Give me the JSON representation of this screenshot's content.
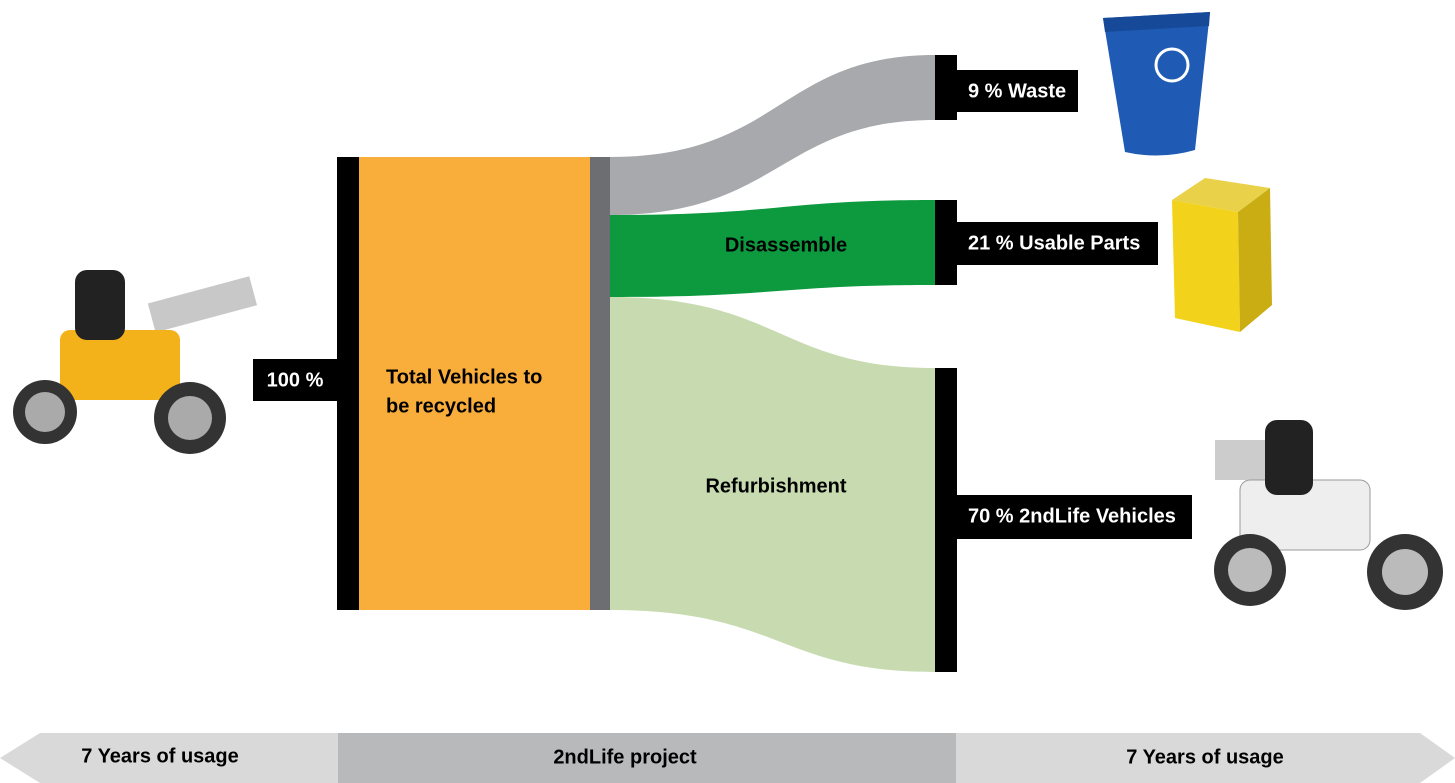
{
  "source": {
    "label": "100 %"
  },
  "main_node": {
    "lines": [
      "Total Vehicles to",
      "be recycled"
    ]
  },
  "flows": {
    "disassemble": "Disassemble",
    "refurbishment": "Refurbishment"
  },
  "outputs": [
    {
      "label": "9 % Waste"
    },
    {
      "label": "21 % Usable Parts"
    },
    {
      "label": "70 % 2ndLife Vehicles"
    }
  ],
  "timeline": [
    "7 Years of usage",
    "2ndLife project",
    "7 Years of usage"
  ]
}
